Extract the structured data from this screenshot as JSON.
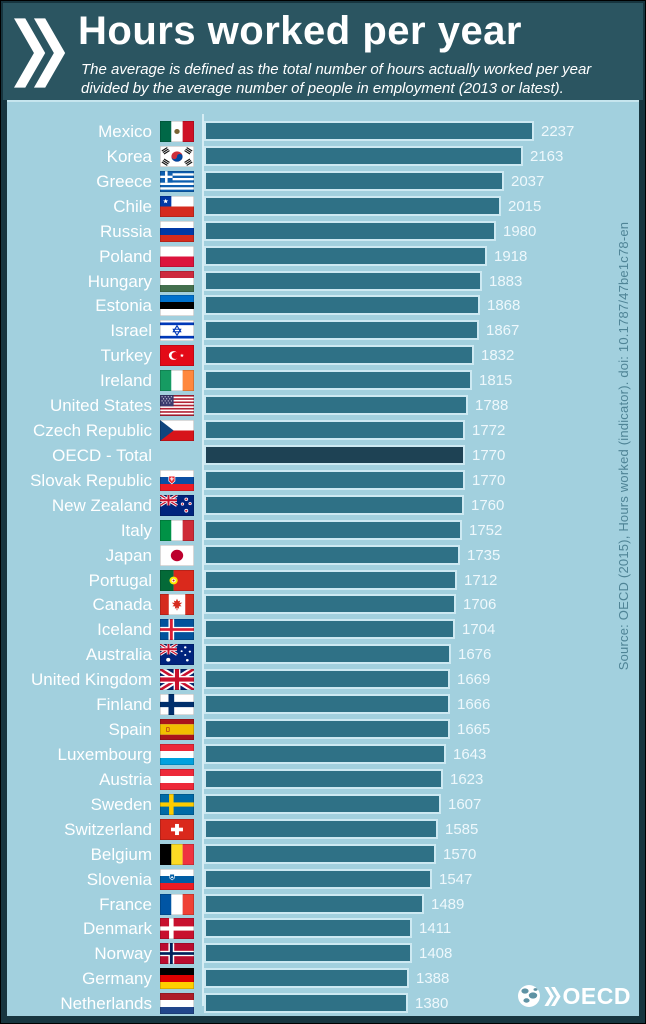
{
  "header": {
    "title": "Hours worked per year",
    "subtitle_line1": "The average is defined as the total number of hours actually worked per year",
    "subtitle_line2": "divided by the average number of people in employment (2013 or latest)."
  },
  "source_note": "Source: OECD (2015), Hours worked (indicator). doi: 10.1787/47be1c78-en",
  "footer": {
    "logo_text": "OECD"
  },
  "colors": {
    "header_bg": "#2b5561",
    "panel_bg": "#a2d0de",
    "bar": "#2f7186",
    "bar_highlight": "#1e4254",
    "bar_border": "#cde9f2",
    "label_text": "#ffffff",
    "value_text": "#eef8fc",
    "source_text": "#4f8496"
  },
  "chart_data": {
    "type": "bar",
    "orientation": "horizontal",
    "title": "Hours worked per year",
    "unit": "hours worked per year per person in employment",
    "value_range": [
      0,
      2237
    ],
    "grid": false,
    "legend": false,
    "highlight_category": "OECD - Total",
    "rows": [
      {
        "label": "Mexico",
        "value": 2237,
        "flag": "mexico"
      },
      {
        "label": "Korea",
        "value": 2163,
        "flag": "korea"
      },
      {
        "label": "Greece",
        "value": 2037,
        "flag": "greece"
      },
      {
        "label": "Chile",
        "value": 2015,
        "flag": "chile"
      },
      {
        "label": "Russia",
        "value": 1980,
        "flag": "russia"
      },
      {
        "label": "Poland",
        "value": 1918,
        "flag": "poland"
      },
      {
        "label": "Hungary",
        "value": 1883,
        "flag": "hungary"
      },
      {
        "label": "Estonia",
        "value": 1868,
        "flag": "estonia"
      },
      {
        "label": "Israel",
        "value": 1867,
        "flag": "israel"
      },
      {
        "label": "Turkey",
        "value": 1832,
        "flag": "turkey"
      },
      {
        "label": "Ireland",
        "value": 1815,
        "flag": "ireland"
      },
      {
        "label": "United States",
        "value": 1788,
        "flag": "usa"
      },
      {
        "label": "Czech Republic",
        "value": 1772,
        "flag": "czech"
      },
      {
        "label": "OECD - Total",
        "value": 1770,
        "flag": "",
        "highlight": true
      },
      {
        "label": "Slovak Republic",
        "value": 1770,
        "flag": "slovakia"
      },
      {
        "label": "New Zealand",
        "value": 1760,
        "flag": "newzealand"
      },
      {
        "label": "Italy",
        "value": 1752,
        "flag": "italy"
      },
      {
        "label": "Japan",
        "value": 1735,
        "flag": "japan"
      },
      {
        "label": "Portugal",
        "value": 1712,
        "flag": "portugal"
      },
      {
        "label": "Canada",
        "value": 1706,
        "flag": "canada"
      },
      {
        "label": "Iceland",
        "value": 1704,
        "flag": "iceland"
      },
      {
        "label": "Australia",
        "value": 1676,
        "flag": "australia"
      },
      {
        "label": "United Kingdom",
        "value": 1669,
        "flag": "uk"
      },
      {
        "label": "Finland",
        "value": 1666,
        "flag": "finland"
      },
      {
        "label": "Spain",
        "value": 1665,
        "flag": "spain"
      },
      {
        "label": "Luxembourg",
        "value": 1643,
        "flag": "luxembourg"
      },
      {
        "label": "Austria",
        "value": 1623,
        "flag": "austria"
      },
      {
        "label": "Sweden",
        "value": 1607,
        "flag": "sweden"
      },
      {
        "label": "Switzerland",
        "value": 1585,
        "flag": "switzerland"
      },
      {
        "label": "Belgium",
        "value": 1570,
        "flag": "belgium"
      },
      {
        "label": "Slovenia",
        "value": 1547,
        "flag": "slovenia"
      },
      {
        "label": "France",
        "value": 1489,
        "flag": "france"
      },
      {
        "label": "Denmark",
        "value": 1411,
        "flag": "denmark"
      },
      {
        "label": "Norway",
        "value": 1408,
        "flag": "norway"
      },
      {
        "label": "Germany",
        "value": 1388,
        "flag": "germany"
      },
      {
        "label": "Netherlands",
        "value": 1380,
        "flag": "netherlands"
      }
    ]
  }
}
